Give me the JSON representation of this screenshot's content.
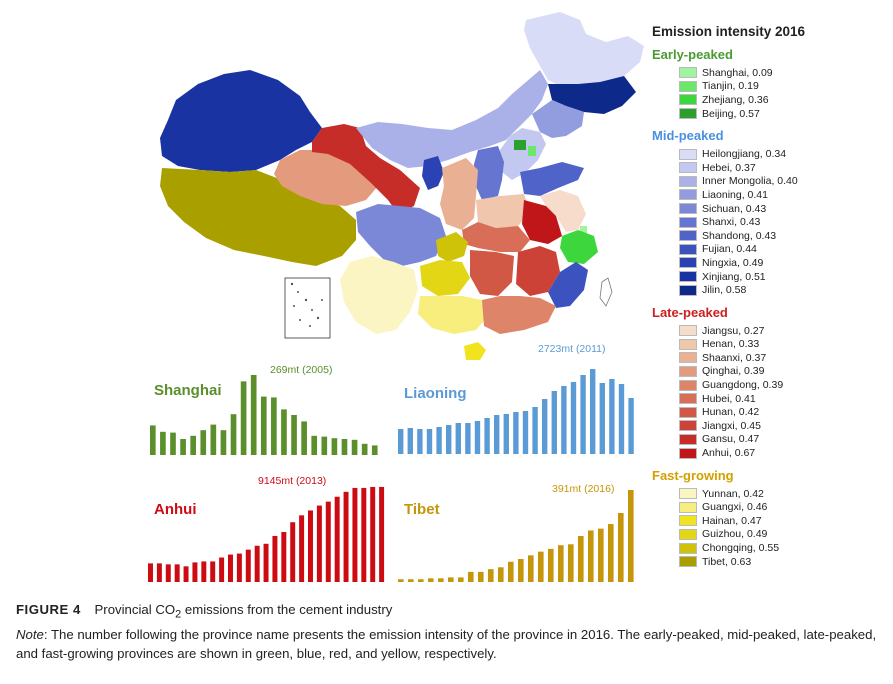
{
  "legend": {
    "title": "Emission intensity 2016",
    "groups": [
      {
        "name": "Early-peaked",
        "color": "#4a9a32",
        "items": [
          {
            "label": "Shanghai, 0.09",
            "color": "#9ff59f"
          },
          {
            "label": "Tianjin, 0.19",
            "color": "#6be86b"
          },
          {
            "label": "Zhejiang, 0.36",
            "color": "#3dd63d"
          },
          {
            "label": "Beijing, 0.57",
            "color": "#2ca02c"
          }
        ]
      },
      {
        "name": "Mid-peaked",
        "color": "#4a90e2",
        "items": [
          {
            "label": "Heilongjiang, 0.34",
            "color": "#d8dcf7"
          },
          {
            "label": "Hebei, 0.37",
            "color": "#c2c8f0"
          },
          {
            "label": "Inner Mongolia, 0.40",
            "color": "#a9b1e8"
          },
          {
            "label": "Liaoning, 0.41",
            "color": "#929de0"
          },
          {
            "label": "Sichuan, 0.43",
            "color": "#7b88d8"
          },
          {
            "label": "Shanxi, 0.43",
            "color": "#6575d0"
          },
          {
            "label": "Shandong, 0.43",
            "color": "#5063c8"
          },
          {
            "label": "Fujian, 0.44",
            "color": "#3c52bf"
          },
          {
            "label": "Ningxia, 0.49",
            "color": "#2a42b3"
          },
          {
            "label": "Xinjiang, 0.51",
            "color": "#1a33a3"
          },
          {
            "label": "Jilin, 0.58",
            "color": "#0d2a8a"
          }
        ]
      },
      {
        "name": "Late-peaked",
        "color": "#cc2020",
        "items": [
          {
            "label": "Jiangsu, 0.27",
            "color": "#f7dccb"
          },
          {
            "label": "Henan, 0.33",
            "color": "#f0c6ad"
          },
          {
            "label": "Shaanxi, 0.37",
            "color": "#e9b094"
          },
          {
            "label": "Qinghai, 0.39",
            "color": "#e39a7d"
          },
          {
            "label": "Guangdong, 0.39",
            "color": "#de8469"
          },
          {
            "label": "Hubei, 0.41",
            "color": "#d86e57"
          },
          {
            "label": "Hunan, 0.42",
            "color": "#d25846"
          },
          {
            "label": "Jiangxi, 0.45",
            "color": "#cc4236"
          },
          {
            "label": "Gansu, 0.47",
            "color": "#c62c28"
          },
          {
            "label": "Anhui, 0.67",
            "color": "#c0161a"
          }
        ]
      },
      {
        "name": "Fast-growing",
        "color": "#d4a000",
        "items": [
          {
            "label": "Yunnan, 0.42",
            "color": "#fbf5c4"
          },
          {
            "label": "Guangxi, 0.46",
            "color": "#f7ee7e"
          },
          {
            "label": "Hainan, 0.47",
            "color": "#f1e31f"
          },
          {
            "label": "Guizhou, 0.49",
            "color": "#e3d614"
          },
          {
            "label": "Chongqing, 0.55",
            "color": "#cfc30a"
          },
          {
            "label": "Tibet, 0.63",
            "color": "#a9a000"
          }
        ]
      }
    ]
  },
  "chart_data": [
    {
      "type": "bar",
      "name": "Shanghai",
      "color": "#5a8f2c",
      "label_color": "#5a8f2c",
      "annotation": "269mt (2005)",
      "values": [
        37,
        29,
        28,
        20,
        24,
        31,
        38,
        31,
        51,
        92,
        100,
        73,
        72,
        57,
        50,
        42,
        24,
        23,
        21,
        20,
        19,
        14,
        12
      ]
    },
    {
      "type": "bar",
      "name": "Liaoning",
      "color": "#5b9bd5",
      "label_color": "#5b9bd5",
      "annotation": "2723mt (2011)",
      "values": [
        25,
        26,
        25,
        25,
        27,
        29,
        31,
        31,
        33,
        36,
        39,
        40,
        42,
        43,
        47,
        55,
        63,
        68,
        72,
        79,
        85,
        71,
        75,
        70,
        56
      ]
    },
    {
      "type": "bar",
      "name": "Anhui",
      "color": "#cc0c12",
      "label_color": "#cc0c12",
      "annotation": "9145mt (2013)",
      "values": [
        19,
        19,
        18,
        18,
        16,
        20,
        21,
        21,
        25,
        28,
        29,
        33,
        37,
        39,
        47,
        51,
        61,
        68,
        73,
        78,
        82,
        87,
        92,
        96,
        96,
        97,
        97
      ]
    },
    {
      "type": "bar",
      "name": "Tibet",
      "color": "#c5960a",
      "label_color": "#c5960a",
      "annotation": "391mt (2016)",
      "values": [
        3,
        3,
        3,
        4,
        4,
        5,
        5,
        11,
        11,
        14,
        16,
        22,
        25,
        29,
        33,
        36,
        40,
        41,
        50,
        56,
        58,
        63,
        75,
        100
      ]
    }
  ],
  "caption": {
    "figure_label": "FIGURE 4",
    "title_before": "Provincial CO",
    "title_sub": "2",
    "title_after": " emissions from the cement industry",
    "note_label": "Note",
    "note_text": ": The number following the province name presents the emission intensity of the province in 2016. The early-peaked, mid-peaked, late-peaked, and fast-growing provinces are shown in green, blue, red, and yellow, respectively."
  }
}
